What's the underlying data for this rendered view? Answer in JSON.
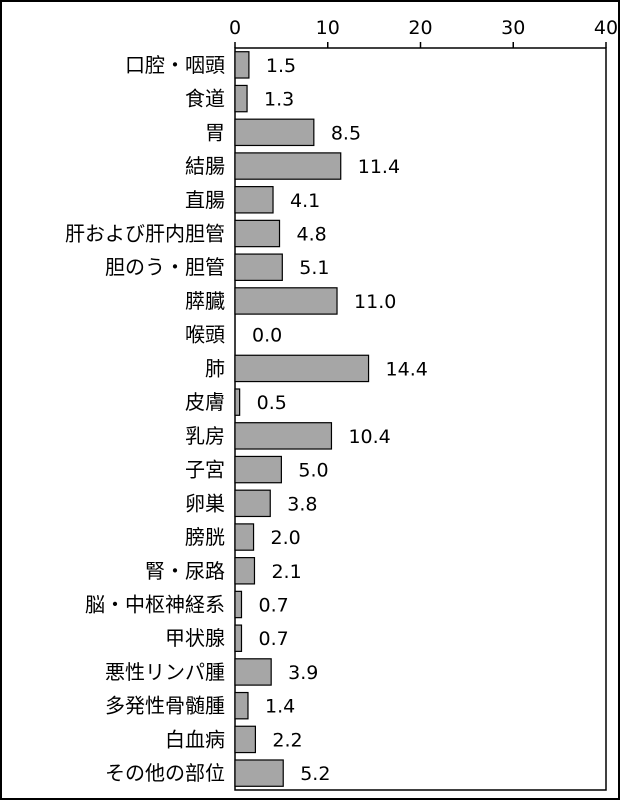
{
  "chart_data": {
    "type": "bar",
    "orientation": "horizontal",
    "title": "",
    "xlabel": "",
    "ylabel": "",
    "xlim": [
      0,
      40
    ],
    "ticks": [
      0,
      10,
      20,
      30,
      40
    ],
    "grid": false,
    "legend": "none",
    "bar_color": "#a6a6a6",
    "categories": [
      "口腔・咽頭",
      "食道",
      "胃",
      "結腸",
      "直腸",
      "肝および肝内胆管",
      "胆のう・胆管",
      "膵臓",
      "喉頭",
      "肺",
      "皮膚",
      "乳房",
      "子宮",
      "卵巣",
      "膀胱",
      "腎・尿路",
      "脳・中枢神経系",
      "甲状腺",
      "悪性リンパ腫",
      "多発性骨髄腫",
      "白血病",
      "その他の部位"
    ],
    "values": [
      1.5,
      1.3,
      8.5,
      11.4,
      4.1,
      4.8,
      5.1,
      11.0,
      0.0,
      14.4,
      0.5,
      10.4,
      5.0,
      3.8,
      2.0,
      2.1,
      0.7,
      0.7,
      3.9,
      1.4,
      2.2,
      5.2
    ],
    "value_labels": [
      "1.5",
      "1.3",
      "8.5",
      "11.4",
      "4.1",
      "4.8",
      "5.1",
      "11.0",
      "0.0",
      "14.4",
      "0.5",
      "10.4",
      "5.0",
      "3.8",
      "2.0",
      "2.1",
      "0.7",
      "0.7",
      "3.9",
      "1.4",
      "2.2",
      "5.2"
    ]
  }
}
